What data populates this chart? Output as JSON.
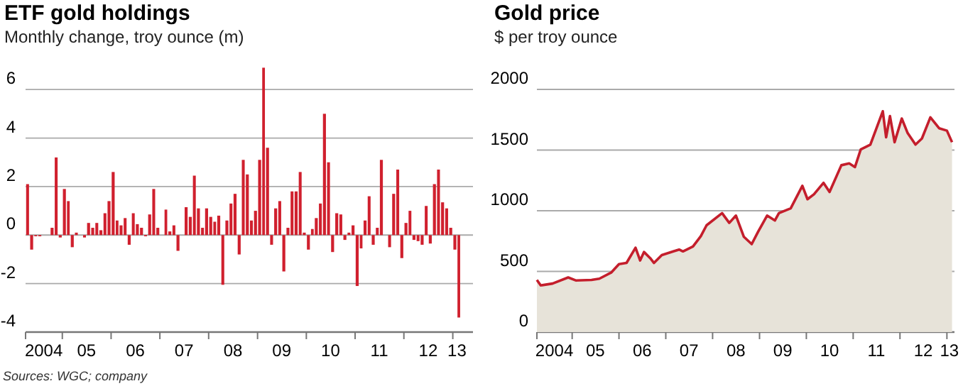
{
  "chart_data": [
    {
      "type": "bar",
      "title": "ETF gold holdings",
      "subtitle": "Monthly change, troy ounce (m)",
      "color": "#d0202e",
      "grid": "y",
      "annotations": [
        "Sources: WGC; company"
      ],
      "xlim": [
        "2004-04",
        "2013-06"
      ],
      "ylim": [
        -4,
        7
      ],
      "yticks": [
        -4,
        -2,
        0,
        2,
        4,
        6
      ],
      "xticks": [
        {
          "value": "2004-04",
          "label": null
        },
        {
          "value": "2004-08-15",
          "label": "2004"
        },
        {
          "value": "2005",
          "label": null
        },
        {
          "value": "2005-07",
          "label": "05"
        },
        {
          "value": "2006",
          "label": null
        },
        {
          "value": "2006-07",
          "label": "06"
        },
        {
          "value": "2007",
          "label": null
        },
        {
          "value": "2007-07",
          "label": "07"
        },
        {
          "value": "2008",
          "label": null
        },
        {
          "value": "2008-07",
          "label": "08"
        },
        {
          "value": "2009",
          "label": null
        },
        {
          "value": "2009-07",
          "label": "09"
        },
        {
          "value": "2010",
          "label": null
        },
        {
          "value": "2010-07",
          "label": "10"
        },
        {
          "value": "2011",
          "label": null
        },
        {
          "value": "2011-07",
          "label": "11"
        },
        {
          "value": "2012",
          "label": null
        },
        {
          "value": "2012-07",
          "label": "12"
        },
        {
          "value": "2013",
          "label": null
        },
        {
          "value": "2013-02",
          "label": "13"
        }
      ],
      "x": [
        "2004-04",
        "2004-05",
        "2004-06",
        "2004-07",
        "2004-08",
        "2004-09",
        "2004-10",
        "2004-11",
        "2004-12",
        "2005-01",
        "2005-02",
        "2005-03",
        "2005-04",
        "2005-05",
        "2005-06",
        "2005-07",
        "2005-08",
        "2005-09",
        "2005-10",
        "2005-11",
        "2005-12",
        "2006-01",
        "2006-02",
        "2006-03",
        "2006-04",
        "2006-05",
        "2006-06",
        "2006-07",
        "2006-08",
        "2006-09",
        "2006-10",
        "2006-11",
        "2006-12",
        "2007-01",
        "2007-02",
        "2007-03",
        "2007-04",
        "2007-05",
        "2007-06",
        "2007-07",
        "2007-08",
        "2007-09",
        "2007-10",
        "2007-11",
        "2007-12",
        "2008-01",
        "2008-02",
        "2008-03",
        "2008-04",
        "2008-05",
        "2008-06",
        "2008-07",
        "2008-08",
        "2008-09",
        "2008-10",
        "2008-11",
        "2008-12",
        "2009-01",
        "2009-02",
        "2009-03",
        "2009-04",
        "2009-05",
        "2009-06",
        "2009-07",
        "2009-08",
        "2009-09",
        "2009-10",
        "2009-11",
        "2009-12",
        "2010-01",
        "2010-02",
        "2010-03",
        "2010-04",
        "2010-05",
        "2010-06",
        "2010-07",
        "2010-08",
        "2010-09",
        "2010-10",
        "2010-11",
        "2010-12",
        "2011-01",
        "2011-02",
        "2011-03",
        "2011-04",
        "2011-05",
        "2011-06",
        "2011-07",
        "2011-08",
        "2011-09",
        "2011-10",
        "2011-11",
        "2011-12",
        "2012-01",
        "2012-02",
        "2012-03",
        "2012-04",
        "2012-05",
        "2012-06",
        "2012-07",
        "2012-08",
        "2012-09",
        "2012-10",
        "2012-11",
        "2012-12",
        "2013-01",
        "2013-02"
      ],
      "values": [
        2.1,
        -0.6,
        -0.05,
        -0.05,
        0,
        0,
        0.3,
        3.2,
        -0.1,
        1.9,
        1.4,
        -0.5,
        0.1,
        0,
        -0.1,
        0.5,
        0.3,
        0.5,
        0.2,
        0.9,
        1.4,
        2.6,
        0.6,
        0.4,
        0.7,
        -0.4,
        0.9,
        0.45,
        0.3,
        -0.05,
        0.85,
        1.9,
        0.3,
        0,
        1.05,
        0.15,
        0.4,
        -0.65,
        0,
        1.15,
        0.75,
        2.45,
        1.1,
        0.3,
        1.1,
        0.75,
        0.55,
        0.8,
        -2.05,
        0.6,
        1.3,
        1.7,
        -0.8,
        3.1,
        2.5,
        0.6,
        1.0,
        3.1,
        6.9,
        3.6,
        -0.4,
        1.1,
        1.4,
        -1.5,
        0.3,
        1.8,
        1.8,
        2.6,
        0.1,
        -0.6,
        0.25,
        0.7,
        1.3,
        5.0,
        3.0,
        -0.7,
        0.9,
        0.85,
        -0.2,
        0.1,
        0.4,
        -2.1,
        -0.55,
        0.6,
        1.6,
        -0.4,
        0.3,
        3.1,
        0,
        -0.5,
        1.7,
        2.7,
        -0.95,
        0.5,
        1.0,
        -0.2,
        -0.25,
        -0.4,
        1.2,
        -0.35,
        2.1,
        2.7,
        1.35,
        1.1,
        0.3,
        -0.6,
        -3.4
      ]
    },
    {
      "type": "area",
      "title": "Gold price",
      "subtitle": "$ per troy ounce",
      "grid": "y",
      "xlim": [
        "2004-04",
        "2013-03"
      ],
      "ylim": [
        0,
        2000
      ],
      "yticks": [
        0,
        500,
        1000,
        1500,
        2000
      ],
      "xticks": [
        {
          "value": "2004-04",
          "label": null
        },
        {
          "value": "2004-08-15",
          "label": "2004"
        },
        {
          "value": "2005",
          "label": null
        },
        {
          "value": "2005-07",
          "label": "05"
        },
        {
          "value": "2006",
          "label": null
        },
        {
          "value": "2006-07",
          "label": "06"
        },
        {
          "value": "2007",
          "label": null
        },
        {
          "value": "2007-07",
          "label": "07"
        },
        {
          "value": "2008",
          "label": null
        },
        {
          "value": "2008-07",
          "label": "08"
        },
        {
          "value": "2009",
          "label": null
        },
        {
          "value": "2009-07",
          "label": "09"
        },
        {
          "value": "2010",
          "label": null
        },
        {
          "value": "2010-07",
          "label": "10"
        },
        {
          "value": "2011",
          "label": null
        },
        {
          "value": "2011-07",
          "label": "11"
        },
        {
          "value": "2012",
          "label": null
        },
        {
          "value": "2012-07",
          "label": "12"
        },
        {
          "value": "2013",
          "label": null
        },
        {
          "value": "2013-01-20",
          "label": "13"
        }
      ],
      "series": [
        {
          "color": "#c41e2c",
          "x": [
            "2004-04-01",
            "2004-05-01",
            "2004-08-01",
            "2004-12-01",
            "2005-02-01",
            "2005-06-01",
            "2005-08-01",
            "2005-11-01",
            "2006-01-01",
            "2006-03-01",
            "2006-05-10",
            "2006-06-15",
            "2006-07-15",
            "2006-09-01",
            "2006-10-01",
            "2006-12-01",
            "2007-03-01",
            "2007-04-15",
            "2007-05-15",
            "2007-08-01",
            "2007-10-01",
            "2007-11-15",
            "2008-03-15",
            "2008-05-10",
            "2008-07-01",
            "2008-09-01",
            "2008-11-01",
            "2008-12-20",
            "2009-03-01",
            "2009-05-01",
            "2009-06-01",
            "2009-09-01",
            "2009-12-01",
            "2010-01-10",
            "2010-03-01",
            "2010-05-15",
            "2010-07-01",
            "2010-10-01",
            "2010-12-01",
            "2011-01-15",
            "2011-03-01",
            "2011-05-15",
            "2011-08-20",
            "2011-09-15",
            "2011-10-15",
            "2011-11-20",
            "2012-01-15",
            "2012-03-01",
            "2012-05-01",
            "2012-06-20",
            "2012-08-25",
            "2012-11-01",
            "2013-01-01",
            "2013-02-10"
          ],
          "values": [
            430,
            385,
            400,
            450,
            425,
            430,
            440,
            490,
            560,
            570,
            695,
            590,
            660,
            610,
            570,
            635,
            665,
            680,
            665,
            705,
            790,
            880,
            980,
            900,
            960,
            785,
            725,
            825,
            960,
            920,
            980,
            1020,
            1205,
            1095,
            1135,
            1230,
            1155,
            1375,
            1390,
            1360,
            1505,
            1545,
            1820,
            1605,
            1780,
            1565,
            1760,
            1640,
            1545,
            1595,
            1770,
            1680,
            1660,
            1565
          ]
        }
      ]
    }
  ]
}
